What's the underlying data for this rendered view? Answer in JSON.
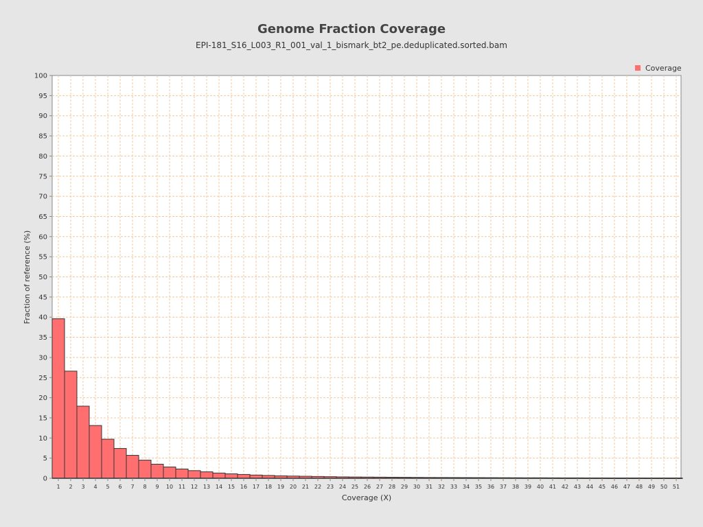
{
  "chart_data": {
    "type": "bar",
    "title": "Genome Fraction Coverage",
    "subtitle": "EPI-181_S16_L003_R1_001_val_1_bismark_bt2_pe.deduplicated.sorted.bam",
    "xlabel": "Coverage (X)",
    "ylabel": "Fraction of reference (%)",
    "ylim": [
      0,
      100
    ],
    "yticks": [
      0,
      5,
      10,
      15,
      20,
      25,
      30,
      35,
      40,
      45,
      50,
      55,
      60,
      65,
      70,
      75,
      80,
      85,
      90,
      95,
      100
    ],
    "categories": [
      "1",
      "2",
      "3",
      "4",
      "5",
      "6",
      "7",
      "8",
      "9",
      "10",
      "11",
      "12",
      "13",
      "14",
      "15",
      "16",
      "17",
      "18",
      "19",
      "20",
      "21",
      "22",
      "23",
      "24",
      "25",
      "26",
      "27",
      "28",
      "29",
      "30",
      "31",
      "32",
      "33",
      "34",
      "35",
      "36",
      "37",
      "38",
      "39",
      "40",
      "41",
      "42",
      "43",
      "44",
      "45",
      "46",
      "47",
      "48",
      "49",
      "50",
      "51"
    ],
    "series": [
      {
        "name": "Coverage",
        "color": "#ff6f6f",
        "values": [
          39.6,
          26.6,
          17.9,
          13.1,
          9.7,
          7.4,
          5.7,
          4.5,
          3.5,
          2.8,
          2.3,
          1.9,
          1.6,
          1.3,
          1.1,
          0.95,
          0.8,
          0.7,
          0.6,
          0.55,
          0.5,
          0.45,
          0.4,
          0.35,
          0.32,
          0.3,
          0.28,
          0.26,
          0.24,
          0.22,
          0.2,
          0.19,
          0.18,
          0.17,
          0.16,
          0.15,
          0.14,
          0.13,
          0.12,
          0.12,
          0.11,
          0.1,
          0.1,
          0.09,
          0.09,
          0.08,
          0.08,
          0.08,
          0.07,
          0.07,
          0.07
        ]
      }
    ],
    "grid": true,
    "legend_position": "top-right",
    "colors": {
      "background": "#e6e6e6",
      "plot_background": "#ffffff",
      "grid": "#f2c8a0",
      "bar_fill": "#ff6f6f",
      "bar_stroke": "#333333"
    }
  }
}
